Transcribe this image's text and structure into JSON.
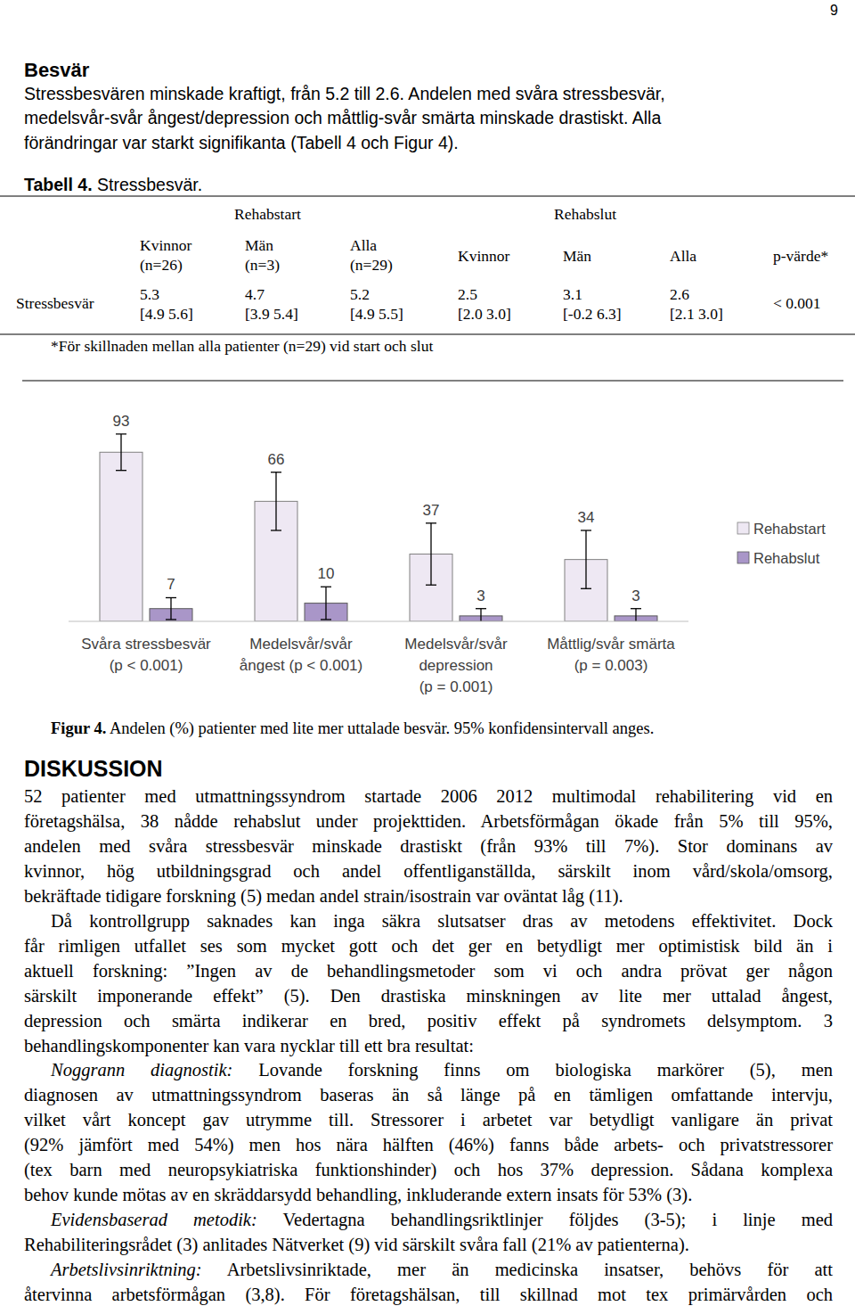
{
  "page_number": "9",
  "section_heading": "Besvär",
  "intro_lines": [
    "Stressbesvären minskade kraftigt, från 5.2 till 2.6. Andelen med svåra stressbesvär,",
    "medelsvår-svår ångest/depression och måttlig-svår smärta minskade drastiskt. Alla",
    "förändringar var starkt signifikanta (Tabell 4 och Figur 4)."
  ],
  "table": {
    "caption": {
      "lead": "Tabell 4.",
      "text": " Stressbesvär."
    },
    "group_headers": [
      "Rehabstart",
      "Rehabslut"
    ],
    "column_headers": [
      {
        "label": "Kvinnor",
        "n": "(n=26)"
      },
      {
        "label": "Män",
        "n": "(n=3)"
      },
      {
        "label": "Alla",
        "n": "(n=29)"
      },
      {
        "label": "Kvinnor"
      },
      {
        "label": "Män"
      },
      {
        "label": "Alla"
      },
      {
        "label": "p-värde*"
      }
    ],
    "rows": [
      {
        "label": "Stressbesvär",
        "cells": [
          {
            "value": "5.3",
            "ci": "[4.9 5.6]"
          },
          {
            "value": "4.7",
            "ci": "[3.9 5.4]"
          },
          {
            "value": "5.2",
            "ci": "[4.9 5.5]"
          },
          {
            "value": "2.5",
            "ci": "[2.0 3.0]"
          },
          {
            "value": "3.1",
            "ci": "[-0.2 6.3]"
          },
          {
            "value": "2.6",
            "ci": "[2.1 3.0]"
          }
        ],
        "p_value": "< 0.001"
      }
    ],
    "footnote": "*För skillnaden mellan alla patienter (n=29) vid start och slut"
  },
  "chart_data": {
    "type": "bar",
    "categories": [
      "Svåra stressbesvär\n(p < 0.001)",
      "Medelsvår/svår\nångest (p < 0.001)",
      "Medelsvår/svår\ndepression\n(p = 0.001)",
      "Måttlig/svår smärta\n(p = 0.003)"
    ],
    "series": [
      {
        "name": "Rehabstart",
        "color": "#eee8f3",
        "values": [
          93,
          66,
          37,
          34
        ],
        "errors": [
          10,
          16,
          17,
          16
        ]
      },
      {
        "name": "Rehabslut",
        "color": "#a996c8",
        "values": [
          7,
          10,
          3,
          3
        ],
        "errors": [
          6,
          9,
          4,
          4
        ]
      }
    ],
    "ylim": [
      0,
      110
    ],
    "data_labels": true,
    "tick_labels": "x",
    "legend": "right",
    "grid": false
  },
  "figure_caption": {
    "lead": "Figur 4.",
    "text": " Andelen (%) patienter med lite mer uttalade besvär. 95% konfidensintervall anges."
  },
  "discussion": {
    "heading": "DISKUSSION",
    "paragraphs": [
      [
        "52 patienter med utmattningssyndrom startade 2006 2012 multimodal rehabilitering vid en",
        "företagshälsa, 38 nådde rehabslut under projekttiden. Arbetsförmågan ökade från 5% till 95%,",
        "andelen med svåra stressbesvär minskade drastiskt (från 93% till 7%). Stor dominans av",
        "kvinnor, hög utbildningsgrad och andel offentliganställda, särskilt inom vård/skola/omsorg,",
        "bekräftade tidigare forskning (5) medan andel strain/isostrain var oväntat låg (11)."
      ],
      [
        "Då kontrollgrupp saknades kan inga säkra slutsatser dras av metodens effektivitet. Dock",
        "får rimligen utfallet ses som mycket gott och det ger en betydligt mer optimistisk bild än i",
        "aktuell forskning: ”Ingen av de behandlingsmetoder som vi och andra prövat ger någon",
        "särskilt imponerande effekt” (5). Den drastiska minskningen av lite mer uttalad ångest,",
        "depression och smärta indikerar en bred, positiv effekt på syndromets delsymptom. 3",
        "behandlingskomponenter kan vara nycklar till ett bra resultat:"
      ],
      [
        {
          "lead": "Noggrann diagnostik:",
          "text": " Lovande forskning finns om biologiska markörer (5), men"
        },
        "diagnosen av utmattningssyndrom baseras än så länge på en tämligen omfattande intervju,",
        "vilket vårt koncept gav utrymme till. Stressorer i arbetet var betydligt vanligare än privat",
        "(92% jämfört med 54%) men hos nära hälften (46%) fanns både arbets- och privatstressorer",
        "(tex barn med neuropsykiatriska funktionshinder) och hos 37% depression. Sådana komplexa",
        "behov kunde mötas av en skräddarsydd behandling, inkluderande extern insats för 53% (3)."
      ],
      [
        {
          "lead": "Evidensbaserad metodik:",
          "text": " Vedertagna behandlingsriktlinjer följdes (3-5); i linje med"
        },
        "Rehabiliteringsrådet (3) anlitades Nätverket (9) vid särskilt svåra fall (21% av patienterna)."
      ],
      [
        {
          "lead": "Arbetslivsinriktning:",
          "text": " Arbetslivsinriktade, mer än medicinska insatser, behövs för att"
        },
        "återvinna arbetsförmågan (3,8). För företagshälsan, till skillnad mot tex primärvården och"
      ]
    ]
  }
}
